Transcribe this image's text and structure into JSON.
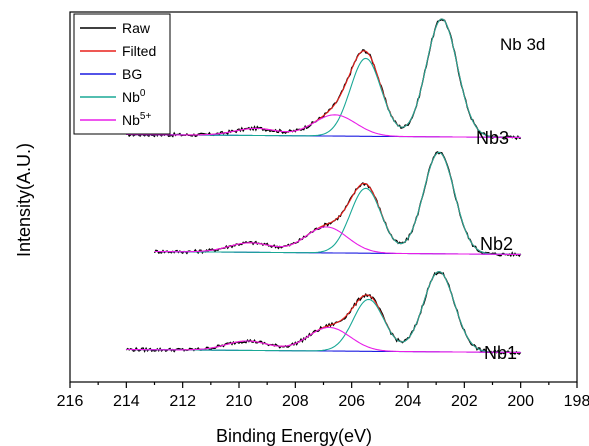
{
  "chart_data": {
    "type": "line",
    "title": "",
    "annotation": "Nb 3d",
    "xlabel": "Binding Energy(eV)",
    "ylabel": "Intensity(A.U.)",
    "xlim": [
      216,
      198
    ],
    "x_reversed": true,
    "x_ticks": [
      "216",
      "214",
      "212",
      "210",
      "208",
      "206",
      "204",
      "202",
      "200",
      "198"
    ],
    "y_ticks_visible": false,
    "legend": {
      "placement": "top-left",
      "entries": [
        {
          "label": "Raw",
          "sup": "",
          "color": "#000000"
        },
        {
          "label": "Filted",
          "sup": "",
          "color": "#e8201c"
        },
        {
          "label": "BG",
          "sup": "",
          "color": "#1a1ae0"
        },
        {
          "label": "Nb",
          "sup": "0",
          "color": "#1aa896"
        },
        {
          "label": "Nb",
          "sup": "5+",
          "color": "#e81ee8"
        }
      ]
    },
    "samples": [
      {
        "name": "Nb3",
        "x_range": [
          214,
          200
        ],
        "nb0_peaks": [
          {
            "center": 202.8,
            "height": 1.0
          },
          {
            "center": 205.5,
            "height": 0.66
          }
        ],
        "nb5_peaks": [
          {
            "center": 206.6,
            "height": 0.18
          },
          {
            "center": 209.4,
            "height": 0.06
          }
        ]
      },
      {
        "name": "Nb2",
        "x_range": [
          213,
          200
        ],
        "nb0_peaks": [
          {
            "center": 202.9,
            "height": 0.86
          },
          {
            "center": 205.5,
            "height": 0.55
          }
        ],
        "nb5_peaks": [
          {
            "center": 206.9,
            "height": 0.22
          },
          {
            "center": 209.6,
            "height": 0.08
          }
        ]
      },
      {
        "name": "Nb1",
        "x_range": [
          214,
          200
        ],
        "nb0_peaks": [
          {
            "center": 202.9,
            "height": 0.68
          },
          {
            "center": 205.4,
            "height": 0.44
          }
        ],
        "nb5_peaks": [
          {
            "center": 206.8,
            "height": 0.2
          },
          {
            "center": 209.7,
            "height": 0.08
          }
        ]
      }
    ]
  }
}
